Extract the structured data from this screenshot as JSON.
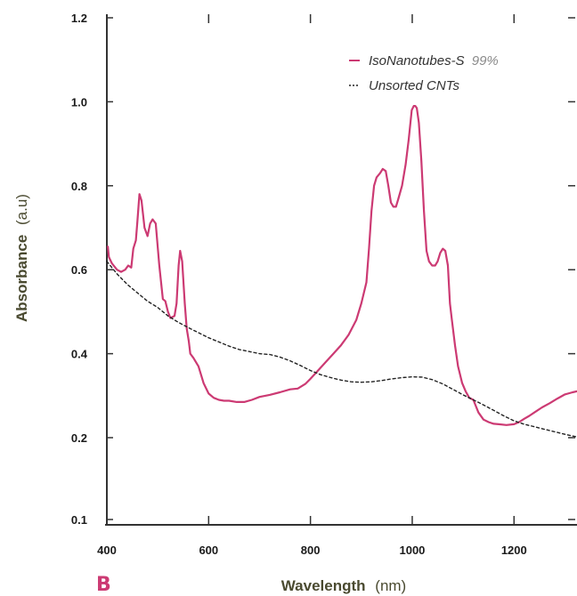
{
  "chart_data": {
    "type": "line",
    "panel_label": "B",
    "xlabel": "Wavelength",
    "xlabel_unit": "(nm)",
    "ylabel": "Absorbance",
    "ylabel_unit": "(a.u)",
    "xlim": [
      400,
      1330
    ],
    "ylim": [
      0.1,
      1.2
    ],
    "x_ticks": [
      400,
      600,
      800,
      1000,
      1200
    ],
    "y_ticks": [
      0.1,
      0.2,
      0.4,
      0.6,
      0.8,
      1.0,
      1.2
    ],
    "y_tick_labels": [
      "0.1",
      "0.2",
      "0.4",
      "0.6",
      "0.8",
      "1.0",
      "1.2"
    ],
    "grid": false,
    "legend_position": "top-right",
    "series": [
      {
        "name": "IsoNanotubes-S",
        "name_suffix": "99%",
        "color": "#cc3a73",
        "style": "solid",
        "x": [
          402,
          404,
          410,
          420,
          428,
          436,
          442,
          448,
          452,
          457,
          460,
          464,
          468,
          474,
          480,
          485,
          490,
          496,
          503,
          510,
          515,
          520,
          525,
          533,
          537,
          541,
          544,
          548,
          553,
          557,
          561,
          564,
          570,
          580,
          590,
          600,
          610,
          620,
          630,
          640,
          655,
          670,
          685,
          700,
          720,
          740,
          760,
          775,
          790,
          800,
          815,
          830,
          845,
          860,
          875,
          890,
          900,
          910,
          915,
          920,
          925,
          930,
          937,
          942,
          948,
          953,
          958,
          963,
          968,
          973,
          980,
          987,
          993,
          999,
          1003,
          1006,
          1009,
          1013,
          1018,
          1023,
          1028,
          1033,
          1039,
          1045,
          1050,
          1055,
          1060,
          1065,
          1070,
          1074,
          1078,
          1084,
          1090,
          1098,
          1105,
          1112,
          1120,
          1130,
          1140,
          1150,
          1160,
          1170,
          1185,
          1200,
          1210,
          1220,
          1230,
          1240,
          1255,
          1270,
          1285,
          1300,
          1315,
          1330
        ],
        "y": [
          0.655,
          0.63,
          0.615,
          0.6,
          0.595,
          0.6,
          0.61,
          0.605,
          0.65,
          0.67,
          0.715,
          0.78,
          0.765,
          0.7,
          0.68,
          0.71,
          0.72,
          0.71,
          0.61,
          0.53,
          0.525,
          0.5,
          0.485,
          0.49,
          0.52,
          0.61,
          0.645,
          0.62,
          0.52,
          0.46,
          0.43,
          0.4,
          0.39,
          0.37,
          0.33,
          0.305,
          0.295,
          0.29,
          0.288,
          0.288,
          0.285,
          0.285,
          0.29,
          0.297,
          0.302,
          0.308,
          0.315,
          0.317,
          0.328,
          0.34,
          0.36,
          0.38,
          0.4,
          0.42,
          0.445,
          0.48,
          0.52,
          0.57,
          0.65,
          0.74,
          0.8,
          0.82,
          0.83,
          0.84,
          0.835,
          0.8,
          0.76,
          0.75,
          0.75,
          0.77,
          0.8,
          0.85,
          0.91,
          0.98,
          0.99,
          0.99,
          0.985,
          0.95,
          0.86,
          0.74,
          0.645,
          0.62,
          0.61,
          0.61,
          0.62,
          0.64,
          0.65,
          0.645,
          0.61,
          0.52,
          0.48,
          0.42,
          0.37,
          0.33,
          0.31,
          0.295,
          0.29,
          0.26,
          0.243,
          0.237,
          0.233,
          0.232,
          0.23,
          0.232,
          0.237,
          0.245,
          0.252,
          0.26,
          0.272,
          0.282,
          0.293,
          0.303,
          0.308,
          0.312
        ]
      },
      {
        "name": "Unsorted CNTs",
        "color": "#222222",
        "style": "dotted",
        "x": [
          400,
          420,
          440,
          460,
          480,
          500,
          520,
          540,
          560,
          580,
          600,
          620,
          640,
          660,
          680,
          700,
          720,
          740,
          760,
          780,
          800,
          820,
          840,
          860,
          880,
          900,
          920,
          940,
          960,
          980,
          1000,
          1020,
          1040,
          1060,
          1080,
          1100,
          1120,
          1140,
          1160,
          1180,
          1200,
          1220,
          1240,
          1260,
          1280,
          1300,
          1330
        ],
        "y": [
          0.62,
          0.59,
          0.565,
          0.545,
          0.525,
          0.51,
          0.49,
          0.475,
          0.462,
          0.45,
          0.438,
          0.428,
          0.418,
          0.41,
          0.405,
          0.4,
          0.398,
          0.392,
          0.383,
          0.372,
          0.36,
          0.35,
          0.343,
          0.337,
          0.333,
          0.332,
          0.333,
          0.336,
          0.34,
          0.343,
          0.345,
          0.344,
          0.338,
          0.328,
          0.315,
          0.302,
          0.29,
          0.278,
          0.265,
          0.252,
          0.24,
          0.232,
          0.226,
          0.22,
          0.214,
          0.208,
          0.2
        ]
      }
    ]
  }
}
